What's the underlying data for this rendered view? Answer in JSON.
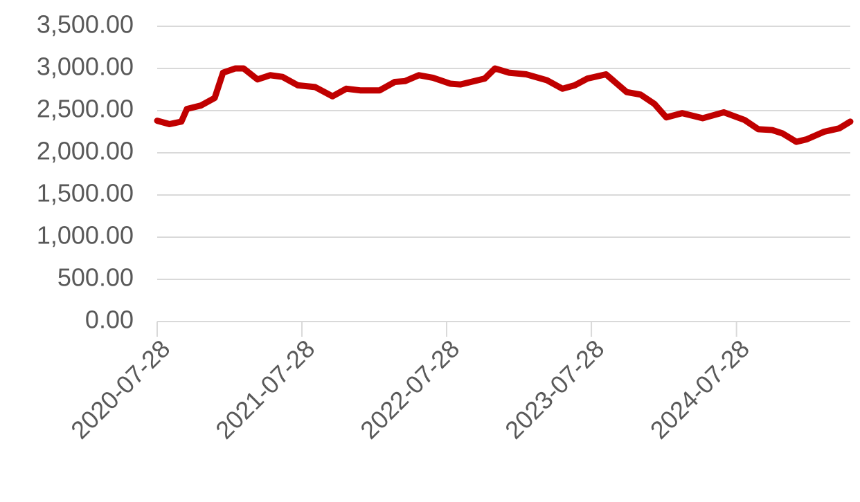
{
  "chart_data": {
    "type": "line",
    "x": [
      "2020-07-28",
      "2020-08-28",
      "2020-09-27",
      "2020-10-11",
      "2020-11-15",
      "2020-12-20",
      "2021-01-10",
      "2021-02-10",
      "2021-03-03",
      "2021-04-07",
      "2021-05-09",
      "2021-06-09",
      "2021-07-18",
      "2021-08-30",
      "2021-10-13",
      "2021-11-17",
      "2021-12-22",
      "2022-02-09",
      "2022-03-19",
      "2022-04-14",
      "2022-05-19",
      "2022-06-23",
      "2022-08-06",
      "2022-09-01",
      "2022-10-06",
      "2022-11-01",
      "2022-11-27",
      "2023-01-01",
      "2023-02-14",
      "2023-04-07",
      "2023-05-16",
      "2023-06-16",
      "2023-07-18",
      "2023-09-03",
      "2023-10-25",
      "2023-11-29",
      "2024-01-03",
      "2024-02-02",
      "2024-03-13",
      "2024-05-04",
      "2024-06-26",
      "2024-08-17",
      "2024-09-21",
      "2024-10-26",
      "2024-11-21",
      "2024-12-26",
      "2025-01-21",
      "2025-03-06",
      "2025-04-13",
      "2025-05-11"
    ],
    "series": [
      {
        "color": "#c00000",
        "values": [
          2380,
          2340,
          2370,
          2520,
          2560,
          2650,
          2950,
          3000,
          3000,
          2870,
          2920,
          2900,
          2800,
          2780,
          2670,
          2760,
          2740,
          2740,
          2840,
          2850,
          2920,
          2890,
          2820,
          2810,
          2850,
          2880,
          3000,
          2950,
          2930,
          2860,
          2760,
          2800,
          2880,
          2930,
          2720,
          2690,
          2580,
          2420,
          2470,
          2410,
          2480,
          2390,
          2280,
          2270,
          2230,
          2130,
          2160,
          2250,
          2290,
          2370
        ]
      }
    ],
    "xlim": [
      "2020-07-28",
      "2025-05-11"
    ],
    "xticks": [
      "2020-07-28",
      "2021-07-28",
      "2022-07-28",
      "2023-07-28",
      "2024-07-28"
    ],
    "ylim": [
      0,
      3500
    ],
    "yticks": [
      {
        "value": 0,
        "label": "0.00"
      },
      {
        "value": 500,
        "label": "500.00"
      },
      {
        "value": 1000,
        "label": "1,000.00"
      },
      {
        "value": 1500,
        "label": "1,500.00"
      },
      {
        "value": 2000,
        "label": "2,000.00"
      },
      {
        "value": 2500,
        "label": "2,500.00"
      },
      {
        "value": 3000,
        "label": "3,000.00"
      },
      {
        "value": 3500,
        "label": "3,500.00"
      }
    ],
    "grid": true
  }
}
